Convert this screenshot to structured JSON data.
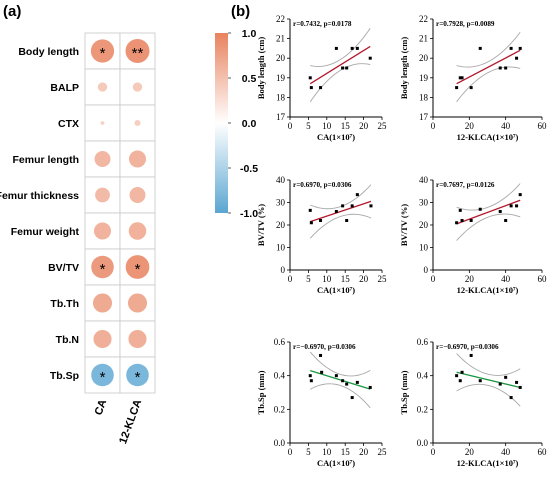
{
  "panel_a_label": "(a)",
  "panel_b_label": "(b)",
  "colorbar": {
    "ticks": [
      "1.0",
      "0.5",
      "0.0",
      "-0.5",
      "-1.0"
    ],
    "pos_color": "#e8825e",
    "neg_color": "#5aa6d1"
  },
  "chart_data": [
    {
      "type": "heatmap",
      "rows": [
        "Body length",
        "BALP",
        "CTX",
        "Femur length",
        "Femur thickness",
        "Femur weight",
        "BV/TV",
        "Tb.Th",
        "Tb.N",
        "Tb.Sp"
      ],
      "columns": [
        "CA",
        "12-KLCA"
      ],
      "values": [
        [
          0.74,
          0.79
        ],
        [
          0.12,
          0.12
        ],
        [
          0.02,
          0.05
        ],
        [
          0.35,
          0.4
        ],
        [
          0.3,
          0.35
        ],
        [
          0.4,
          0.42
        ],
        [
          0.7,
          0.77
        ],
        [
          0.5,
          0.5
        ],
        [
          0.45,
          0.45
        ],
        [
          -0.7,
          -0.7
        ]
      ],
      "stars": [
        [
          "*",
          "**"
        ],
        [
          "",
          ""
        ],
        [
          "",
          ""
        ],
        [
          "",
          ""
        ],
        [
          "",
          ""
        ],
        [
          "",
          ""
        ],
        [
          "*",
          "*"
        ],
        [
          "",
          ""
        ],
        [
          "",
          ""
        ],
        [
          "*",
          "*"
        ]
      ],
      "color_range": [
        -1.0,
        1.0
      ]
    },
    {
      "type": "scatter",
      "annotation": "r=0.7432, p=0.0178",
      "xlabel": "CA(1×10⁷)",
      "ylabel": "Body length (cm)",
      "xlim": [
        0,
        25
      ],
      "ylim": [
        17,
        22
      ],
      "xticks": [
        "0",
        "5",
        "10",
        "15",
        "20",
        "25"
      ],
      "yticks": [
        "17",
        "18",
        "19",
        "20",
        "21",
        "22"
      ],
      "x": [
        5.5,
        5.8,
        8.3,
        12.6,
        14.3,
        15.4,
        16.9,
        18.3,
        21.8
      ],
      "y": [
        19.0,
        18.5,
        18.5,
        20.5,
        19.5,
        19.5,
        20.5,
        20.5,
        20.0
      ],
      "fit": [
        18.7,
        20.6
      ],
      "band_color": "#a8a8a8",
      "line_color": "#b2182b"
    },
    {
      "type": "scatter",
      "annotation": "r=0.7928, p=0.0089",
      "xlabel": "12-KLCA(1×10⁷)",
      "ylabel": "Body length (cm)",
      "xlim": [
        0,
        60
      ],
      "ylim": [
        17,
        22
      ],
      "xticks": [
        "0",
        "20",
        "40",
        "60"
      ],
      "yticks": [
        "17",
        "18",
        "19",
        "20",
        "21",
        "22"
      ],
      "x": [
        13,
        15,
        16,
        21,
        26,
        37,
        40,
        43,
        46,
        48
      ],
      "y": [
        18.5,
        19.0,
        19.0,
        18.5,
        20.5,
        19.5,
        19.5,
        20.5,
        20.0,
        20.5
      ],
      "fit": [
        18.7,
        20.4
      ],
      "band_color": "#a8a8a8",
      "line_color": "#b2182b"
    },
    {
      "type": "scatter",
      "annotation": "r=0.6970, p=0.0306",
      "xlabel": "CA(1×10⁷)",
      "ylabel": "BV/TV (%)",
      "xlim": [
        0,
        25
      ],
      "ylim": [
        0,
        40
      ],
      "xticks": [
        "0",
        "5",
        "10",
        "15",
        "20",
        "25"
      ],
      "yticks": [
        "0",
        "10",
        "20",
        "30",
        "40"
      ],
      "x": [
        5.5,
        5.8,
        8.3,
        12.6,
        14.3,
        15.4,
        16.9,
        18.3,
        22.0
      ],
      "y": [
        26.5,
        21.0,
        22.0,
        26.0,
        28.5,
        22.0,
        28.5,
        33.5,
        28.5
      ],
      "fit": [
        21.5,
        30.5
      ],
      "band_color": "#a8a8a8",
      "line_color": "#b2182b"
    },
    {
      "type": "scatter",
      "annotation": "r=0.7697, p=0.0126",
      "xlabel": "12-KLCA(1×10⁷)",
      "ylabel": "BV/TV (%)",
      "xlim": [
        0,
        60
      ],
      "ylim": [
        0,
        40
      ],
      "xticks": [
        "0",
        "20",
        "40",
        "60"
      ],
      "yticks": [
        "0",
        "10",
        "20",
        "30",
        "40"
      ],
      "x": [
        13,
        15,
        16,
        21,
        26,
        37,
        40,
        43,
        46,
        48
      ],
      "y": [
        21.0,
        26.5,
        22.0,
        22.0,
        27.0,
        26.0,
        22.0,
        28.5,
        28.5,
        33.5
      ],
      "fit": [
        20.5,
        31.0
      ],
      "band_color": "#a8a8a8",
      "line_color": "#b2182b"
    },
    {
      "type": "scatter",
      "annotation": "r=−0.6970, p=0.0306",
      "xlabel": "CA(1×10⁷)",
      "ylabel": "Tb.Sp (mm)",
      "xlim": [
        0,
        25
      ],
      "ylim": [
        0,
        0.6
      ],
      "xticks": [
        "0",
        "5",
        "10",
        "15",
        "20",
        "25"
      ],
      "yticks": [
        "0.0",
        "0.2",
        "0.4",
        "0.6"
      ],
      "x": [
        5.5,
        5.8,
        8.3,
        8.6,
        12.6,
        14.3,
        15.4,
        16.9,
        18.3,
        21.8
      ],
      "y": [
        0.4,
        0.37,
        0.52,
        0.42,
        0.4,
        0.37,
        0.35,
        0.27,
        0.36,
        0.33
      ],
      "fit": [
        0.43,
        0.32
      ],
      "band_color": "#a8a8a8",
      "line_color": "#1a9641"
    },
    {
      "type": "scatter",
      "annotation": "r=−0.6970, p=0.0306",
      "xlabel": "12-KLCA(1×10⁷)",
      "ylabel": "Tb.Sp (mm)",
      "xlim": [
        0,
        60
      ],
      "ylim": [
        0,
        0.6
      ],
      "xticks": [
        "0",
        "20",
        "40",
        "60"
      ],
      "yticks": [
        "0.0",
        "0.2",
        "0.4",
        "0.6"
      ],
      "x": [
        13,
        15,
        16,
        21,
        26,
        37,
        40,
        43,
        46,
        48
      ],
      "y": [
        0.4,
        0.37,
        0.42,
        0.52,
        0.37,
        0.35,
        0.39,
        0.27,
        0.36,
        0.33
      ],
      "fit": [
        0.42,
        0.33
      ],
      "band_color": "#a8a8a8",
      "line_color": "#1a9641"
    }
  ]
}
